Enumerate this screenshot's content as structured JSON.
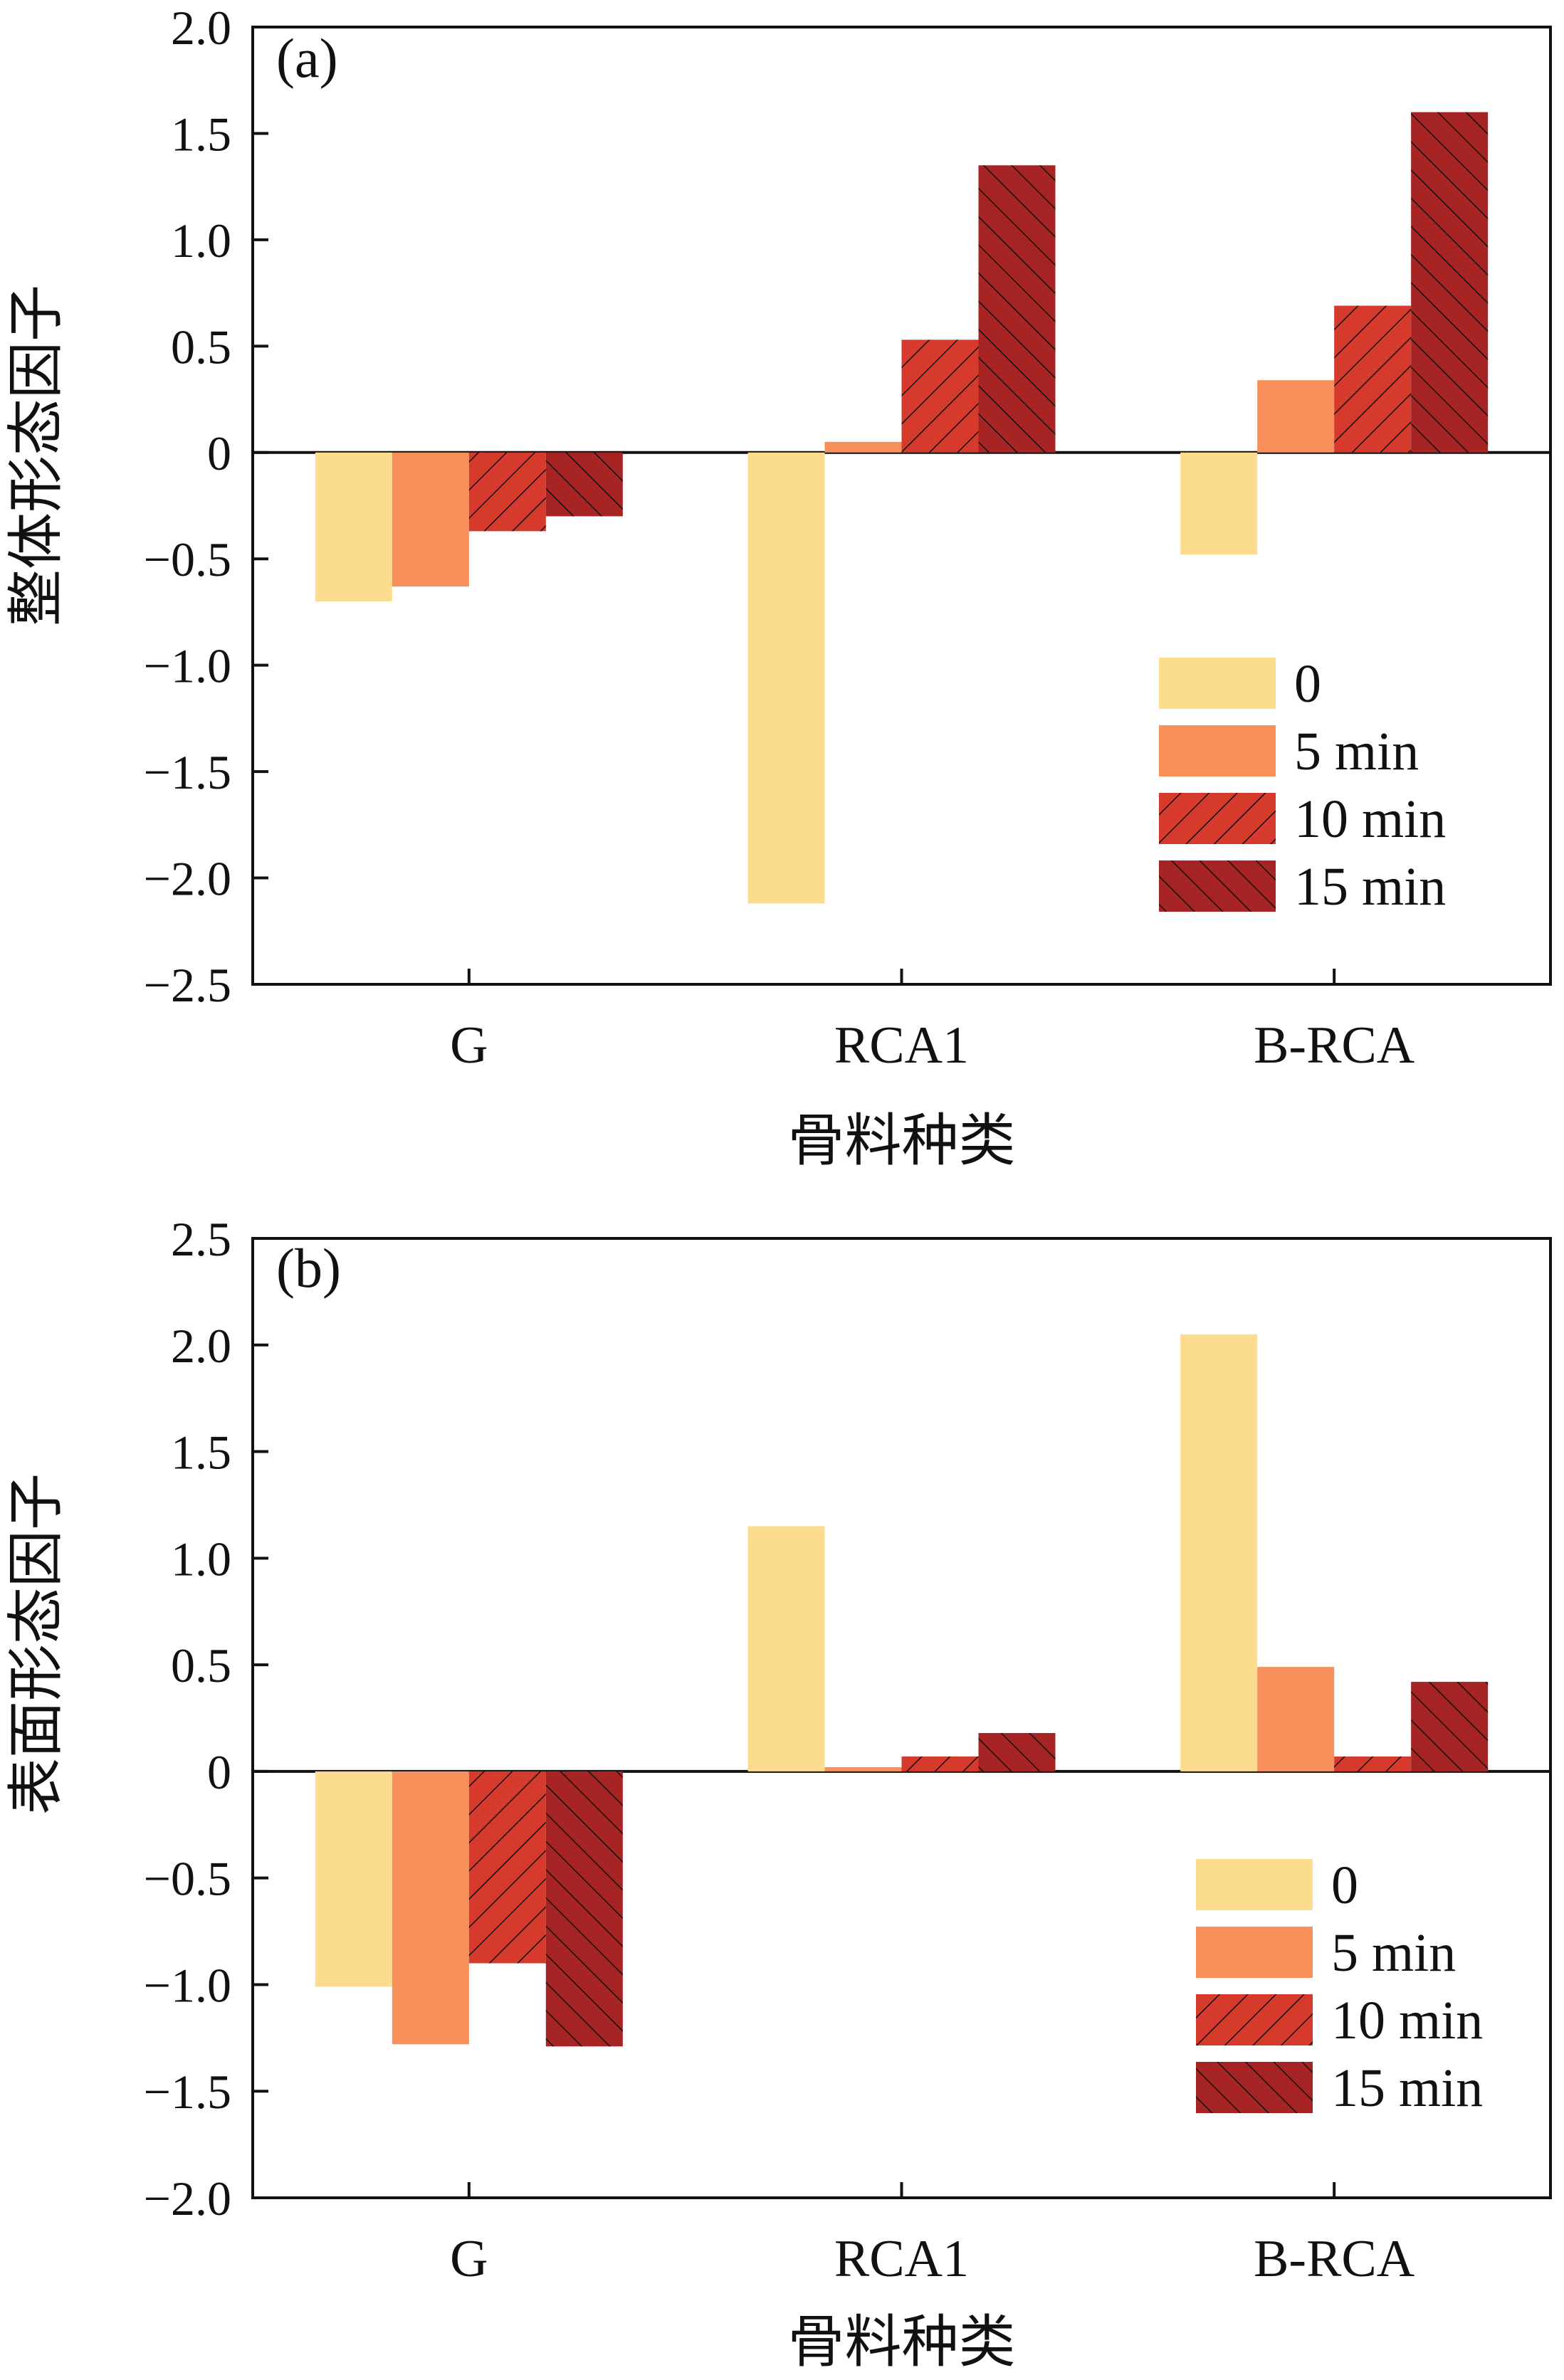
{
  "chart_data": [
    {
      "type": "bar",
      "panel_label": "(a)",
      "categories": [
        "G",
        "RCA1",
        "B-RCA"
      ],
      "series": [
        {
          "name": "0",
          "values": [
            -0.7,
            -2.12,
            -0.48
          ]
        },
        {
          "name": "5 min",
          "values": [
            -0.63,
            0.05,
            0.34
          ]
        },
        {
          "name": "10 min",
          "values": [
            -0.37,
            0.53,
            0.69
          ]
        },
        {
          "name": "15 min",
          "values": [
            -0.3,
            1.35,
            1.6
          ]
        }
      ],
      "xlabel": "骨料种类",
      "ylabel": "整体形态因子",
      "ylim": [
        -2.5,
        2.0
      ],
      "yticks": [
        "2.0",
        "1.5",
        "1.0",
        "0.5",
        "0",
        "−0.5",
        "−1.0",
        "−1.5",
        "−2.0",
        "−2.5"
      ],
      "ytick_values": [
        2.0,
        1.5,
        1.0,
        0.5,
        0,
        -0.5,
        -1.0,
        -1.5,
        -2.0,
        -2.5
      ],
      "grid": false,
      "legend_position": "lower-right"
    },
    {
      "type": "bar",
      "panel_label": "(b)",
      "categories": [
        "G",
        "RCA1",
        "B-RCA"
      ],
      "series": [
        {
          "name": "0",
          "values": [
            -1.01,
            1.15,
            2.05
          ]
        },
        {
          "name": "5 min",
          "values": [
            -1.28,
            0.02,
            0.49
          ]
        },
        {
          "name": "10 min",
          "values": [
            -0.9,
            0.07,
            0.07
          ]
        },
        {
          "name": "15 min",
          "values": [
            -1.29,
            0.18,
            0.42
          ]
        }
      ],
      "xlabel": "骨料种类",
      "ylabel": "表面形态因子",
      "ylim": [
        -2.0,
        2.5
      ],
      "yticks": [
        "2.5",
        "2.0",
        "1.5",
        "1.0",
        "0.5",
        "0",
        "−0.5",
        "−1.0",
        "−1.5",
        "−2.0"
      ],
      "ytick_values": [
        2.5,
        2.0,
        1.5,
        1.0,
        0.5,
        0,
        -0.5,
        -1.0,
        -1.5,
        -2.0
      ],
      "grid": false,
      "legend_position": "lower-right"
    }
  ],
  "series_style": [
    {
      "fill": "#fcdc8e",
      "hatch": "none"
    },
    {
      "fill": "#f7905a",
      "hatch": "none"
    },
    {
      "fill": "#d63a2c",
      "hatch": "backslash"
    },
    {
      "fill": "#a62524",
      "hatch": "slash"
    }
  ]
}
